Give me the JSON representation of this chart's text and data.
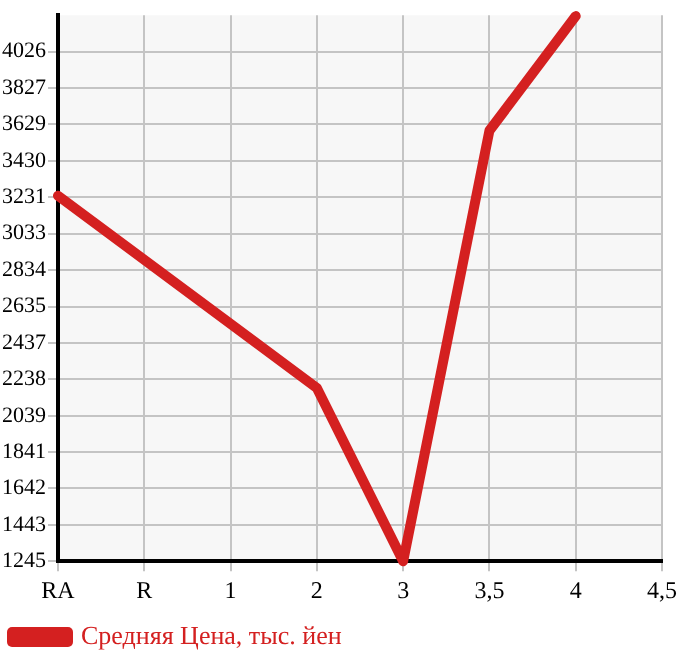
{
  "chart_data": {
    "type": "line",
    "categories": [
      "RA",
      "R",
      "1",
      "2",
      "3",
      "3,5",
      "4",
      "4,5"
    ],
    "series": [
      {
        "name": "Средняя Цена, тыс. йен",
        "color": "#d42020",
        "values": [
          3240,
          null,
          null,
          2190,
          1245,
          3595,
          4220,
          null
        ]
      }
    ],
    "ylim": [
      1245,
      4225
    ],
    "yticks": [
      1245,
      1443,
      1642,
      1841,
      2039,
      2238,
      2437,
      2635,
      2834,
      3033,
      3231,
      3430,
      3629,
      3827,
      4026
    ],
    "grid": true,
    "legend": "bottom",
    "marker": "none",
    "line_style": "solid"
  }
}
